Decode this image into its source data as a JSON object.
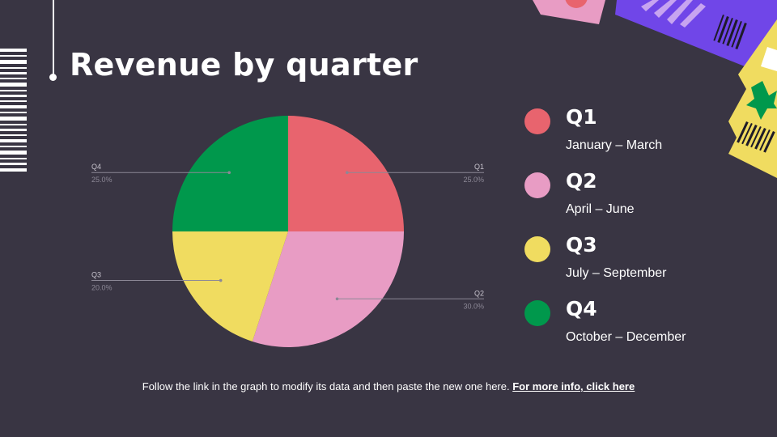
{
  "slide": {
    "title": "Revenue by quarter",
    "footer_text": "Follow the link in the graph to modify its data and then paste the new one here.",
    "footer_link": "For more info, click here"
  },
  "colors": {
    "background": "#393543",
    "q1": "#E8646E",
    "q2": "#E89CC4",
    "q3": "#F0DC60",
    "q4": "#00984C"
  },
  "legend": [
    {
      "label": "Q1",
      "range": "January – March",
      "color": "#E8646E"
    },
    {
      "label": "Q2",
      "range": "April – June",
      "color": "#E89CC4"
    },
    {
      "label": "Q3",
      "range": "July – September",
      "color": "#F0DC60"
    },
    {
      "label": "Q4",
      "range": "October – December",
      "color": "#00984C"
    }
  ],
  "chart_data": {
    "type": "pie",
    "categories": [
      "Q1",
      "Q2",
      "Q3",
      "Q4"
    ],
    "values": [
      25.0,
      30.0,
      20.0,
      25.0
    ],
    "value_labels": [
      "25.0%",
      "30.0%",
      "20.0%",
      "25.0%"
    ],
    "colors": [
      "#E8646E",
      "#E89CC4",
      "#F0DC60",
      "#00984C"
    ],
    "start": "12 o'clock",
    "direction": "clockwise",
    "legend": "right"
  }
}
